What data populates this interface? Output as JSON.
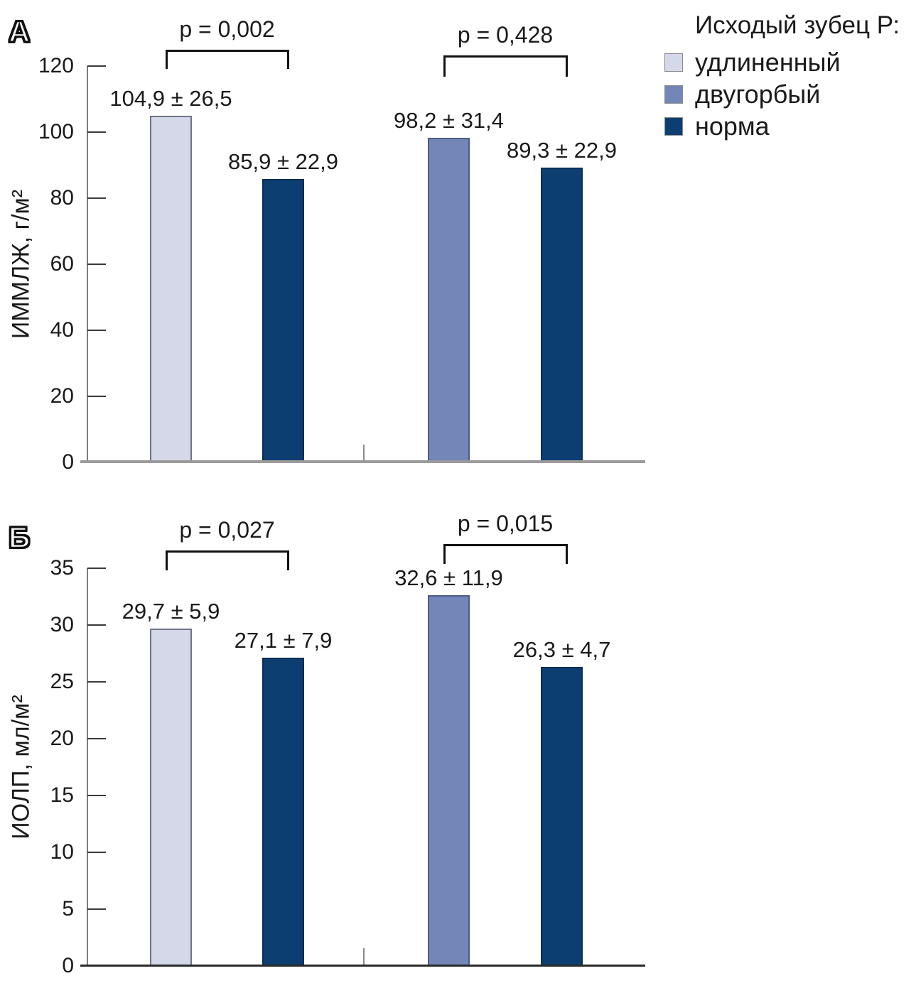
{
  "figure": {
    "background": "#ffffff"
  },
  "legend": {
    "title": "Исходый зубец Р:",
    "items": [
      {
        "label": "удлиненный",
        "color": "#d5d8e8",
        "border": "#6e7488"
      },
      {
        "label": "двугорбый",
        "color": "#7286b8",
        "border": "#4d5c85"
      },
      {
        "label": "норма",
        "color": "#0c3e72",
        "border": "#092e54"
      }
    ]
  },
  "chart_data": [
    {
      "type": "bar",
      "panel": "А",
      "ylabel": "ИММЛЖ, г/м²",
      "ylim": [
        0,
        120
      ],
      "yticks": [
        120,
        100,
        80,
        60,
        40,
        20,
        0
      ],
      "grid": false,
      "legend_position": "top-right",
      "groups": [
        {
          "p_label": "p = 0,002",
          "bars": [
            {
              "series": "удлиненный",
              "mean": 104.9,
              "sd": 26.5,
              "label": "104,9 ± 26,5"
            },
            {
              "series": "норма",
              "mean": 85.9,
              "sd": 22.9,
              "label": "85,9 ± 22,9"
            }
          ]
        },
        {
          "p_label": "p = 0,428",
          "bars": [
            {
              "series": "двугорбый",
              "mean": 98.2,
              "sd": 31.4,
              "label": "98,2 ± 31,4"
            },
            {
              "series": "норма",
              "mean": 89.3,
              "sd": 22.9,
              "label": "89,3 ± 22,9"
            }
          ]
        }
      ]
    },
    {
      "type": "bar",
      "panel": "Б",
      "ylabel": "ИОЛП, мл/м²",
      "ylim": [
        0,
        35
      ],
      "yticks": [
        35,
        30,
        25,
        20,
        15,
        10,
        5,
        0
      ],
      "grid": false,
      "legend_position": "none",
      "groups": [
        {
          "p_label": "p = 0,027",
          "bars": [
            {
              "series": "удлиненный",
              "mean": 29.7,
              "sd": 5.9,
              "label": "29,7 ± 5,9"
            },
            {
              "series": "норма",
              "mean": 27.1,
              "sd": 7.9,
              "label": "27,1 ± 7,9"
            }
          ]
        },
        {
          "p_label": "p = 0,015",
          "bars": [
            {
              "series": "двугорбый",
              "mean": 32.6,
              "sd": 11.9,
              "label": "32,6 ± 11,9"
            },
            {
              "series": "норма",
              "mean": 26.3,
              "sd": 4.7,
              "label": "26,3 ± 4,7"
            }
          ]
        }
      ]
    }
  ]
}
